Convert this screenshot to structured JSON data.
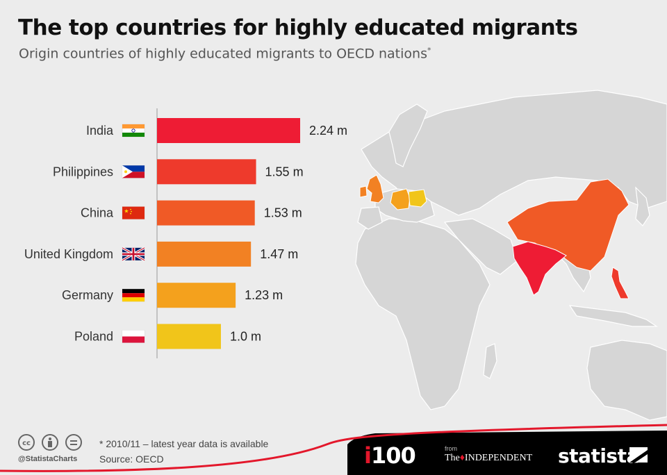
{
  "header": {
    "title": "The top countries for highly educated migrants",
    "subtitle": "Origin countries of highly educated migrants to OECD nations",
    "subtitle_mark": "*"
  },
  "chart_data": {
    "type": "bar",
    "orientation": "horizontal",
    "categories": [
      "India",
      "Philippines",
      "China",
      "United Kingdom",
      "Germany",
      "Poland"
    ],
    "values": [
      2.24,
      1.55,
      1.53,
      1.47,
      1.23,
      1.0
    ],
    "value_labels": [
      "2.24 m",
      "1.55 m",
      "1.53 m",
      "1.47 m",
      "1.23 m",
      "1.0 m"
    ],
    "unit": "m",
    "bar_colors": [
      "#ee1c34",
      "#ee3a2c",
      "#f05a26",
      "#f28123",
      "#f4a11d",
      "#f1c51a"
    ],
    "flags": [
      "flag-india-icon",
      "flag-philippines-icon",
      "flag-china-icon",
      "flag-uk-icon",
      "flag-germany-icon",
      "flag-poland-icon"
    ],
    "xlim": [
      0,
      2.24
    ],
    "grid": false
  },
  "footer": {
    "note": "* 2010/11 – latest year data is available",
    "source": "Source: OECD",
    "handle": "@StatistaCharts",
    "brand_i100_i": "i",
    "brand_i100_rest": "100",
    "brand_from": "from",
    "brand_independent_the": "The",
    "brand_independent_name": "INDEPENDENT",
    "brand_statista": "statista"
  },
  "colors": {
    "background": "#ececec",
    "land": "#d4d4d4",
    "footer_band": "#000000",
    "footer_accent": "#e3172b"
  }
}
